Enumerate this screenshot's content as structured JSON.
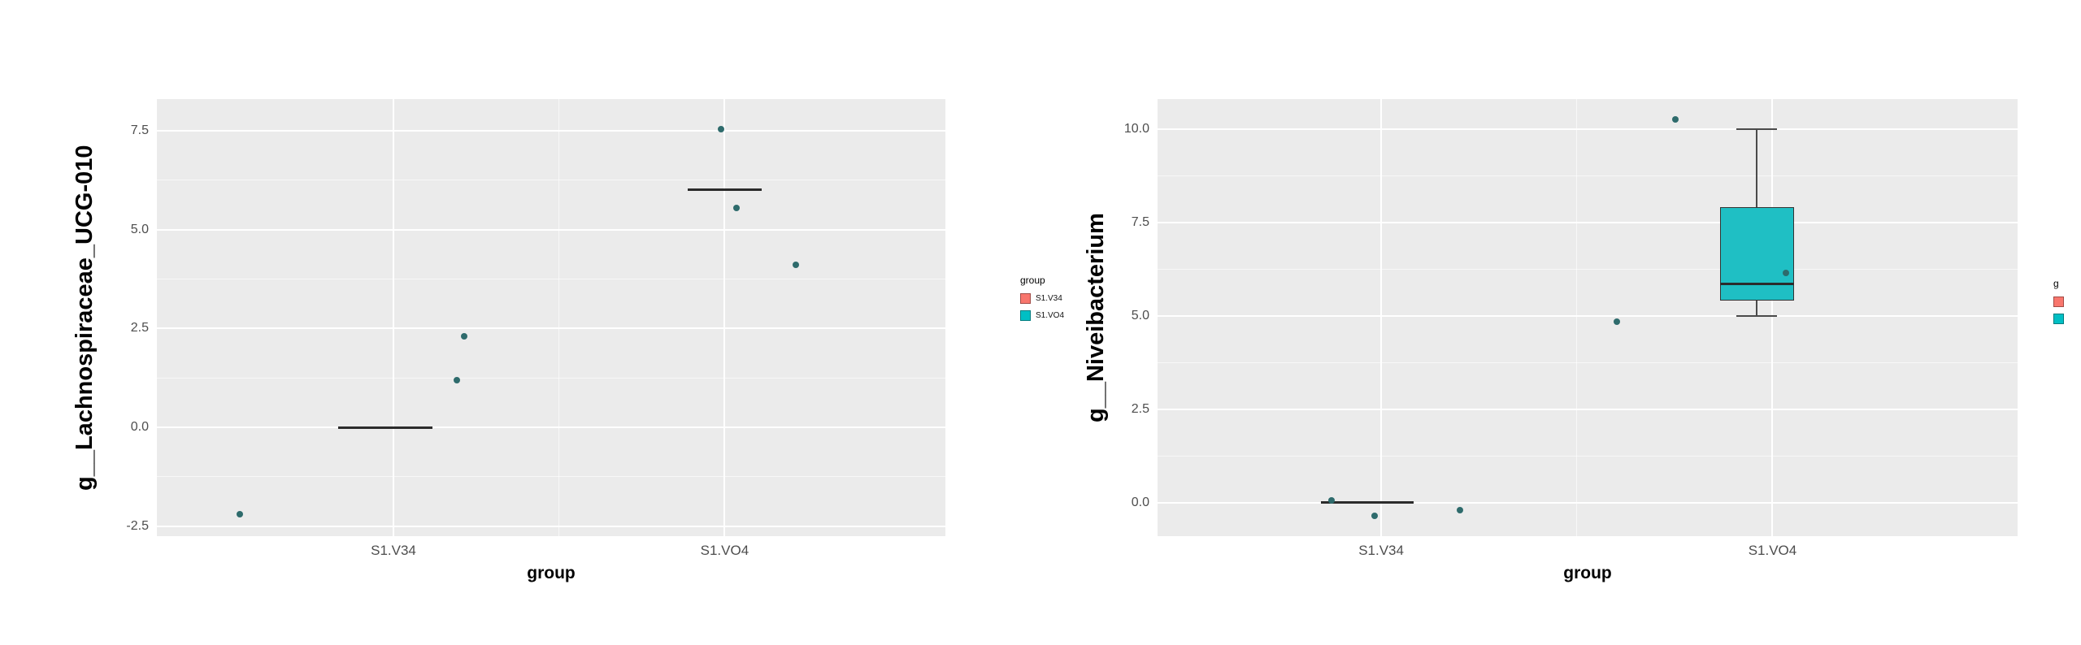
{
  "page": {
    "background": "#ffffff"
  },
  "style": {
    "panel_bg": "#ebebeb",
    "grid_major": "#ffffff",
    "grid_minor": "rgba(255,255,255,0.6)",
    "point_color": "#2e6b6c",
    "median_color": "#2b2b2b",
    "box_fill": "#1fbfc4",
    "box_border": "#333333",
    "whisker_color": "#4a4a4a",
    "tick_label_color": "#4d4d4d",
    "axis_title_color": "#000000"
  },
  "legend_left": {
    "title": "group",
    "items": [
      {
        "label": "S1.V34",
        "color": "#f8766d"
      },
      {
        "label": "S1.VO4",
        "color": "#00bfc4"
      }
    ]
  },
  "legend_right": {
    "title": "g",
    "items": [
      {
        "label": "",
        "color": "#f8766d"
      },
      {
        "label": "",
        "color": "#00bfc4"
      }
    ]
  },
  "chart_data": [
    {
      "type": "box",
      "title": "",
      "xlabel": "group",
      "ylabel": "g__Lachnospiraceae_UCG-010",
      "categories": [
        "S1.V34",
        "S1.VO4"
      ],
      "category_x": [
        0.3,
        0.72
      ],
      "ylim": [
        -2.75,
        8.3
      ],
      "yticks": [
        -2.5,
        0,
        2.5,
        5,
        7.5
      ],
      "ytick_labels": [
        "-2.5",
        "0.0",
        "2.5",
        "5.0",
        "7.5"
      ],
      "grid": true,
      "legend_position": "right",
      "groups": [
        {
          "category": "S1.V34",
          "median_line": {
            "value": 0.0,
            "center_x": 0.29,
            "half_width": 0.06
          },
          "box": null,
          "points": [
            {
              "value": -2.2,
              "x": 0.105
            },
            {
              "value": 2.3,
              "x": 0.39
            },
            {
              "value": 1.2,
              "x": 0.38
            }
          ]
        },
        {
          "category": "S1.VO4",
          "median_line": {
            "value": 6.0,
            "center_x": 0.72,
            "half_width": 0.047
          },
          "box": null,
          "points": [
            {
              "value": 7.55,
              "x": 0.715
            },
            {
              "value": 5.55,
              "x": 0.735
            },
            {
              "value": 4.1,
              "x": 0.81
            }
          ]
        }
      ]
    },
    {
      "type": "box",
      "title": "",
      "xlabel": "group",
      "ylabel": "g__Niveibacterium",
      "categories": [
        "S1.V34",
        "S1.VO4"
      ],
      "category_x": [
        0.26,
        0.715
      ],
      "ylim": [
        -0.9,
        10.8
      ],
      "yticks": [
        0,
        2.5,
        5,
        7.5,
        10
      ],
      "ytick_labels": [
        "0.0",
        "2.5",
        "5.0",
        "7.5",
        "10.0"
      ],
      "grid": true,
      "legend_position": "right",
      "groups": [
        {
          "category": "S1.V34",
          "median_line": {
            "value": 0.0,
            "center_x": 0.244,
            "half_width": 0.054
          },
          "box": null,
          "points": [
            {
              "value": 0.05,
              "x": 0.202
            },
            {
              "value": -0.35,
              "x": 0.252
            },
            {
              "value": -0.2,
              "x": 0.352
            }
          ]
        },
        {
          "category": "S1.VO4",
          "median_line": null,
          "box": {
            "center_x": 0.697,
            "half_width": 0.043,
            "q1": 5.4,
            "q3": 7.9,
            "median": 5.85,
            "whisker_low": 5.0,
            "whisker_high": 10.0
          },
          "points": [
            {
              "value": 10.25,
              "x": 0.602
            },
            {
              "value": 6.15,
              "x": 0.731
            },
            {
              "value": 4.85,
              "x": 0.534
            }
          ]
        }
      ]
    }
  ]
}
